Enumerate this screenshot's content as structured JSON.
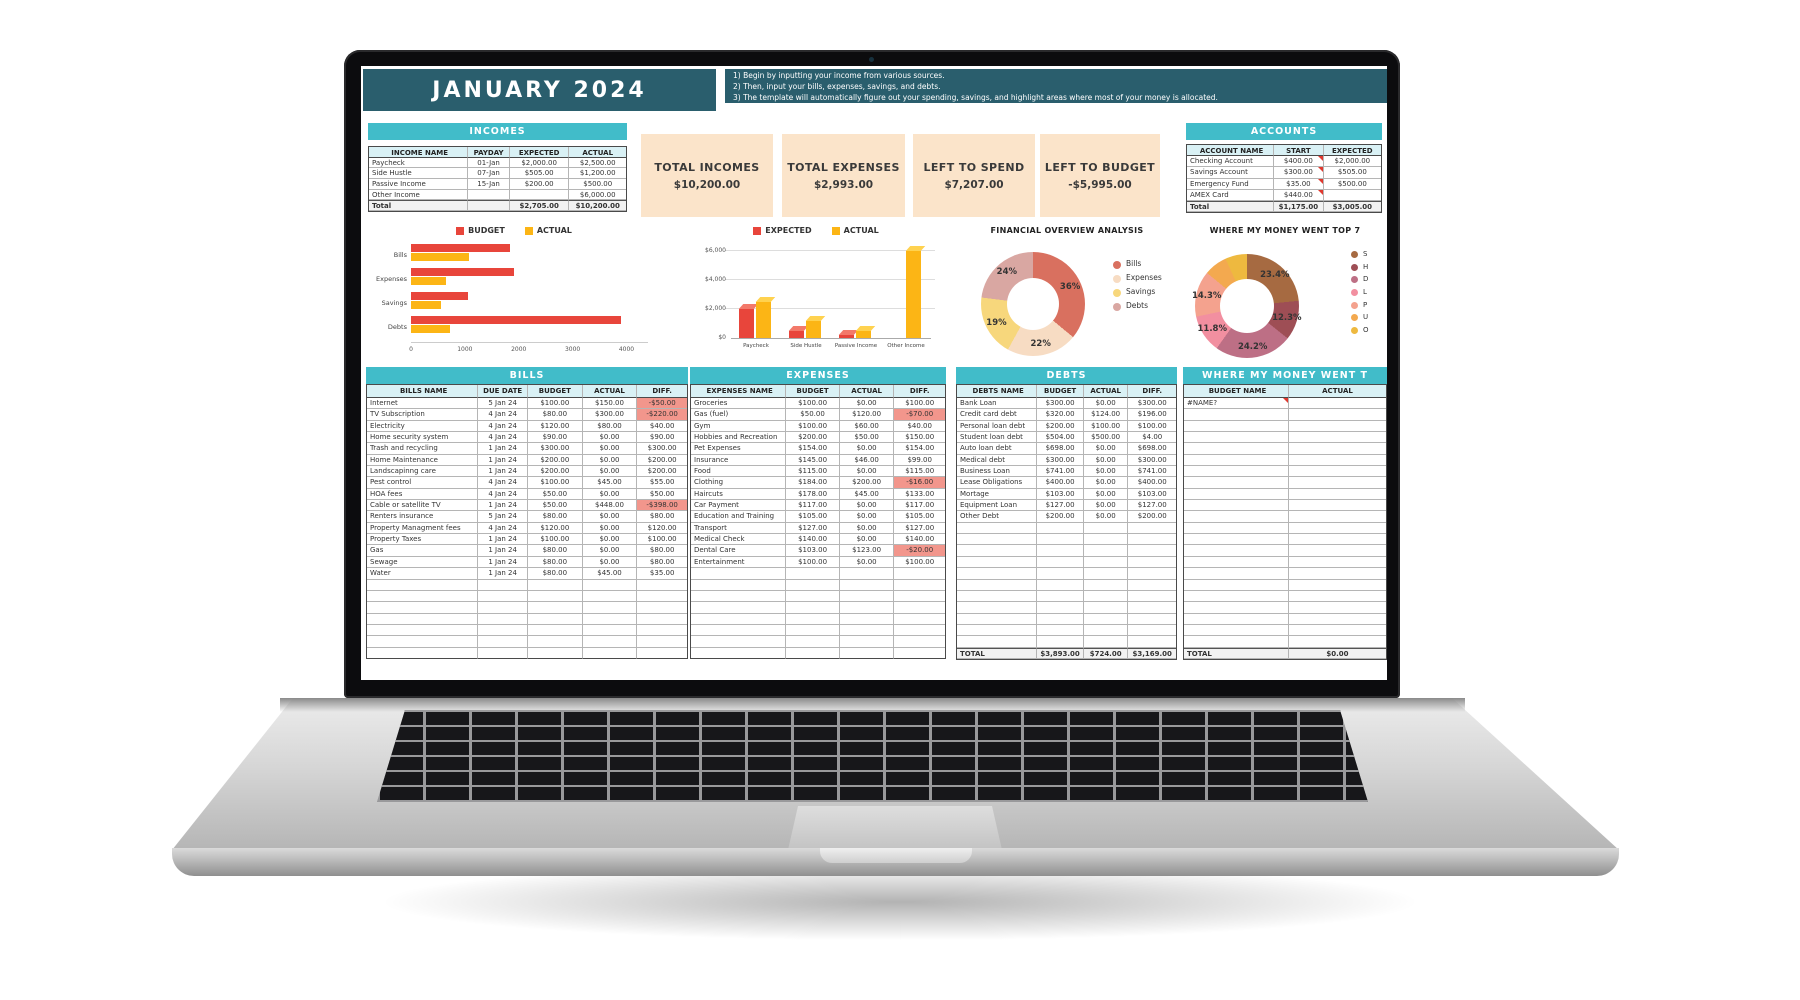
{
  "title": "JANUARY 2024",
  "instructions": [
    "1)  Begin by inputting your income from various sources.",
    "2)  Then, input your bills, expenses, savings, and debts.",
    "3)  The template will automatically figure out your spending, savings, and highlight areas where most of your money is allocated."
  ],
  "colors": {
    "header_dark_teal": "#2a5e6d",
    "section_teal": "#41bcc9",
    "column_header_blue": "#d9f1f5",
    "card_beige": "#fbe4ca",
    "budget_red": "#e8453b",
    "actual_yellow": "#fcb515",
    "negative_cell": "#f2968c",
    "note_triangle": "#e0382e"
  },
  "incomes": {
    "header": "INCOMES",
    "columns": [
      "INCOME NAME",
      "PAYDAY",
      "EXPECTED",
      "ACTUAL"
    ],
    "rows": [
      {
        "name": "Paycheck",
        "payday": "01-Jan",
        "expected": "$2,000.00",
        "actual": "$2,500.00"
      },
      {
        "name": "Side Hustle",
        "payday": "07-Jan",
        "expected": "$505.00",
        "actual": "$1,200.00"
      },
      {
        "name": "Passive Income",
        "payday": "15-Jan",
        "expected": "$200.00",
        "actual": "$500.00"
      },
      {
        "name": "Other Income",
        "payday": "",
        "expected": "",
        "actual": "$6,000.00"
      }
    ],
    "total": {
      "name": "Total",
      "payday": "",
      "expected": "$2,705.00",
      "actual": "$10,200.00"
    }
  },
  "summary_cards": [
    {
      "label": "TOTAL INCOMES",
      "value": "$10,200.00"
    },
    {
      "label": "TOTAL EXPENSES",
      "value": "$2,993.00"
    },
    {
      "label": "LEFT TO SPEND",
      "value": "$7,207.00"
    },
    {
      "label": "LEFT TO BUDGET",
      "value": "-$5,995.00"
    }
  ],
  "accounts": {
    "header": "ACCOUNTS",
    "columns": [
      "ACCOUNT NAME",
      "START",
      "EXPECTED"
    ],
    "rows": [
      {
        "name": "Checking Account",
        "start": "$400.00",
        "expected": "$2,000.00",
        "note": "start"
      },
      {
        "name": "Savings Account",
        "start": "$300.00",
        "expected": "$505.00",
        "note": "start"
      },
      {
        "name": "Emergency Fund",
        "start": "$35.00",
        "expected": "$500.00",
        "note": "start"
      },
      {
        "name": "AMEX Card",
        "start": "$440.00",
        "expected": "",
        "note": "start"
      }
    ],
    "total": {
      "name": "Total",
      "start": "$1,175.00",
      "expected": "$3,005.00"
    }
  },
  "chart_data": [
    {
      "type": "bar",
      "orientation": "horizontal",
      "legend": [
        "BUDGET",
        "ACTUAL"
      ],
      "categories": [
        "Bills",
        "Expenses",
        "Savings",
        "Debts"
      ],
      "series": [
        {
          "name": "BUDGET",
          "color": "#e8453b",
          "values": [
            1830,
            1918,
            1050,
            3893
          ]
        },
        {
          "name": "ACTUAL",
          "color": "#fcb515",
          "values": [
            1068,
            644,
            550,
            724
          ]
        }
      ],
      "xmax": 4400,
      "xticks": [
        {
          "label": "0",
          "v": 0
        },
        {
          "label": "1000",
          "v": 1000
        },
        {
          "label": "2000",
          "v": 2000
        },
        {
          "label": "3000",
          "v": 3000
        },
        {
          "label": "4000",
          "v": 4000
        }
      ]
    },
    {
      "type": "bar",
      "orientation": "vertical",
      "legend": [
        "EXPECTED",
        "ACTUAL"
      ],
      "categories": [
        "Paycheck",
        "Side Hustle",
        "Passive Income",
        "Other Income"
      ],
      "series": [
        {
          "name": "EXPECTED",
          "color": "#e8453b",
          "cap": "#f3796a",
          "values": [
            2000,
            505,
            200,
            0
          ]
        },
        {
          "name": "ACTUAL",
          "color": "#fcb515",
          "cap": "#ffd24f",
          "values": [
            2500,
            1200,
            500,
            6000
          ]
        }
      ],
      "ymax": 6600,
      "yticks": [
        {
          "label": "$6,000",
          "v": 6000
        },
        {
          "label": "$4,000",
          "v": 4000
        },
        {
          "label": "$2,000",
          "v": 2000
        },
        {
          "label": "$0",
          "v": 0
        }
      ]
    },
    {
      "type": "pie",
      "title": "FINANCIAL OVERVIEW ANALYSIS",
      "slices": [
        {
          "name": "Bills",
          "pct": 36,
          "label": "36%",
          "color": "#d9705f"
        },
        {
          "name": "Expenses",
          "pct": 22,
          "label": "22%",
          "color": "#f7dcc3"
        },
        {
          "name": "Savings",
          "pct": 19,
          "label": "19%",
          "color": "#f7d77c"
        },
        {
          "name": "Debts",
          "pct": 24,
          "label": "24%",
          "color": "#d9a7a2"
        }
      ],
      "legend": [
        "Bills",
        "Expenses",
        "Savings",
        "Debts"
      ],
      "legend_position": "right"
    },
    {
      "type": "pie",
      "title": "WHERE MY MONEY WENT TOP 7",
      "slices": [
        {
          "name": "S",
          "pct": 23.4,
          "label": "23.4%",
          "color": "#a66a41"
        },
        {
          "name": "H",
          "pct": 12.3,
          "label": "12.3%",
          "color": "#9e4e55"
        },
        {
          "name": "D",
          "pct": 24.2,
          "label": "24.2%",
          "color": "#bd6f85"
        },
        {
          "name": "L",
          "pct": 11.8,
          "label": "11.8%",
          "color": "#f28fa0"
        },
        {
          "name": "P",
          "pct": 14.3,
          "label": "14.3%",
          "color": "#f4a28e"
        },
        {
          "name": "U",
          "pct": 7.2,
          "label": "",
          "color": "#f3a94f"
        },
        {
          "name": "O",
          "pct": 6.8,
          "label": "",
          "color": "#eeb93f"
        }
      ],
      "legend": [
        "S",
        "H",
        "D",
        "L",
        "P",
        "U",
        "O"
      ],
      "legend_position": "right-truncated"
    }
  ],
  "bills": {
    "header": "BILLS",
    "columns": [
      "BILLS NAME",
      "DUE DATE",
      "BUDGET",
      "ACTUAL",
      "DIFF."
    ],
    "rows": [
      {
        "name": "Internet",
        "due": "5 Jan 24",
        "budget": "$100.00",
        "actual": "$150.00",
        "diff": "-$50.00",
        "neg": true
      },
      {
        "name": "TV Subscription",
        "due": "4 Jan 24",
        "budget": "$80.00",
        "actual": "$300.00",
        "diff": "-$220.00",
        "neg": true
      },
      {
        "name": "Electricity",
        "due": "4 Jan 24",
        "budget": "$120.00",
        "actual": "$80.00",
        "diff": "$40.00"
      },
      {
        "name": "Home security system",
        "due": "4 Jan 24",
        "budget": "$90.00",
        "actual": "$0.00",
        "diff": "$90.00"
      },
      {
        "name": "Trash and recycling",
        "due": "1 Jan 24",
        "budget": "$300.00",
        "actual": "$0.00",
        "diff": "$300.00"
      },
      {
        "name": "Home Maintenance",
        "due": "1 Jan 24",
        "budget": "$200.00",
        "actual": "$0.00",
        "diff": "$200.00"
      },
      {
        "name": "Landscapinng care",
        "due": "1 Jan 24",
        "budget": "$200.00",
        "actual": "$0.00",
        "diff": "$200.00"
      },
      {
        "name": "Pest control",
        "due": "4 Jan 24",
        "budget": "$100.00",
        "actual": "$45.00",
        "diff": "$55.00"
      },
      {
        "name": "HOA fees",
        "due": "4 Jan 24",
        "budget": "$50.00",
        "actual": "$0.00",
        "diff": "$50.00"
      },
      {
        "name": "Cable or satellite TV",
        "due": "1 Jan 24",
        "budget": "$50.00",
        "actual": "$448.00",
        "diff": "-$398.00",
        "neg": true
      },
      {
        "name": "Renters insurance",
        "due": "5 Jan 24",
        "budget": "$80.00",
        "actual": "$0.00",
        "diff": "$80.00"
      },
      {
        "name": "Property Managment fees",
        "due": "4 Jan 24",
        "budget": "$120.00",
        "actual": "$0.00",
        "diff": "$120.00"
      },
      {
        "name": "Property Taxes",
        "due": "1 Jan 24",
        "budget": "$100.00",
        "actual": "$0.00",
        "diff": "$100.00"
      },
      {
        "name": "Gas",
        "due": "1 Jan 24",
        "budget": "$80.00",
        "actual": "$0.00",
        "diff": "$80.00"
      },
      {
        "name": "Sewage",
        "due": "1 Jan 24",
        "budget": "$80.00",
        "actual": "$0.00",
        "diff": "$80.00"
      },
      {
        "name": "Water",
        "due": "1 Jan 24",
        "budget": "$80.00",
        "actual": "$45.00",
        "diff": "$35.00"
      }
    ]
  },
  "expenses": {
    "header": "EXPENSES",
    "columns": [
      "EXPENSES NAME",
      "BUDGET",
      "ACTUAL",
      "DIFF."
    ],
    "rows": [
      {
        "name": "Groceries",
        "budget": "$100.00",
        "actual": "$0.00",
        "diff": "$100.00"
      },
      {
        "name": "Gas (fuel)",
        "budget": "$50.00",
        "actual": "$120.00",
        "diff": "-$70.00",
        "neg": true
      },
      {
        "name": "Gym",
        "budget": "$100.00",
        "actual": "$60.00",
        "diff": "$40.00"
      },
      {
        "name": "Hobbies and Recreation",
        "budget": "$200.00",
        "actual": "$50.00",
        "diff": "$150.00"
      },
      {
        "name": "Pet Expenses",
        "budget": "$154.00",
        "actual": "$0.00",
        "diff": "$154.00"
      },
      {
        "name": "Insurance",
        "budget": "$145.00",
        "actual": "$46.00",
        "diff": "$99.00"
      },
      {
        "name": "Food",
        "budget": "$115.00",
        "actual": "$0.00",
        "diff": "$115.00"
      },
      {
        "name": "Clothing",
        "budget": "$184.00",
        "actual": "$200.00",
        "diff": "-$16.00",
        "neg": true
      },
      {
        "name": "Haircuts",
        "budget": "$178.00",
        "actual": "$45.00",
        "diff": "$133.00"
      },
      {
        "name": "Car Payment",
        "budget": "$117.00",
        "actual": "$0.00",
        "diff": "$117.00"
      },
      {
        "name": "Education and Training",
        "budget": "$105.00",
        "actual": "$0.00",
        "diff": "$105.00"
      },
      {
        "name": "Transport",
        "budget": "$127.00",
        "actual": "$0.00",
        "diff": "$127.00"
      },
      {
        "name": "Medical Check",
        "budget": "$140.00",
        "actual": "$0.00",
        "diff": "$140.00"
      },
      {
        "name": "Dental Care",
        "budget": "$103.00",
        "actual": "$123.00",
        "diff": "-$20.00",
        "neg": true
      },
      {
        "name": "Entertainment",
        "budget": "$100.00",
        "actual": "$0.00",
        "diff": "$100.00"
      }
    ]
  },
  "debts": {
    "header": "DEBTS",
    "columns": [
      "DEBTS NAME",
      "BUDGET",
      "ACTUAL",
      "DIFF."
    ],
    "rows": [
      {
        "name": "Bank Loan",
        "budget": "$300.00",
        "actual": "$0.00",
        "diff": "$300.00"
      },
      {
        "name": "Credit card debt",
        "budget": "$320.00",
        "actual": "$124.00",
        "diff": "$196.00"
      },
      {
        "name": "Personal loan debt",
        "budget": "$200.00",
        "actual": "$100.00",
        "diff": "$100.00"
      },
      {
        "name": "Student loan debt",
        "budget": "$504.00",
        "actual": "$500.00",
        "diff": "$4.00"
      },
      {
        "name": "Auto loan debt",
        "budget": "$698.00",
        "actual": "$0.00",
        "diff": "$698.00"
      },
      {
        "name": "Medical debt",
        "budget": "$300.00",
        "actual": "$0.00",
        "diff": "$300.00"
      },
      {
        "name": "Business Loan",
        "budget": "$741.00",
        "actual": "$0.00",
        "diff": "$741.00"
      },
      {
        "name": "Lease Obligations",
        "budget": "$400.00",
        "actual": "$0.00",
        "diff": "$400.00"
      },
      {
        "name": "Mortage",
        "budget": "$103.00",
        "actual": "$0.00",
        "diff": "$103.00"
      },
      {
        "name": "Equipment Loan",
        "budget": "$127.00",
        "actual": "$0.00",
        "diff": "$127.00"
      },
      {
        "name": "Other Debt",
        "budget": "$200.00",
        "actual": "$0.00",
        "diff": "$200.00"
      }
    ],
    "total": {
      "name": "TOTAL",
      "budget": "$3,893.00",
      "actual": "$724.00",
      "diff": "$3,169.00"
    }
  },
  "money_went": {
    "header": "WHERE MY MONEY WENT T",
    "columns": [
      "BUDGET NAME",
      "ACTUAL"
    ],
    "rows": [
      {
        "name": "#NAME?",
        "actual": "",
        "note": "name"
      }
    ],
    "total": {
      "name": "TOTAL",
      "actual": "$0.00"
    }
  }
}
